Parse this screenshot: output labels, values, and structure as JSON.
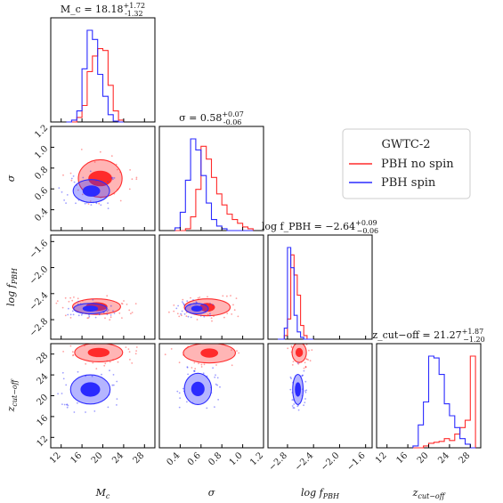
{
  "chart_data": {
    "type": "corner",
    "colors": {
      "no_spin": "#ff2b2b",
      "spin": "#2b2bff"
    },
    "legend": {
      "title": "GWTC-2",
      "entries": [
        "PBH no spin",
        "PBH spin"
      ],
      "placement": "right"
    },
    "parameters": [
      {
        "key": "Mc",
        "label": "M_c",
        "range": [
          10,
          30
        ],
        "ticks": [
          12,
          16,
          20,
          24,
          28
        ],
        "tick_labels": [
          "12",
          "16",
          "20",
          "24",
          "28"
        ],
        "title": "M_c = 18.18^{+1.72}_{-1.32}"
      },
      {
        "key": "sigma",
        "label": "σ",
        "range": [
          0.2,
          1.2
        ],
        "ticks": [
          0.4,
          0.6,
          0.8,
          1.0,
          1.2
        ],
        "tick_labels": [
          "0.4",
          "0.6",
          "0.8",
          "1.0",
          "1.2"
        ],
        "title": "σ = 0.58^{+0.07}_{-0.06}"
      },
      {
        "key": "logf",
        "label": "log f_PBH",
        "range": [
          -3.1,
          -1.5
        ],
        "ticks": [
          -2.8,
          -2.4,
          -2.0,
          -1.6
        ],
        "tick_labels": [
          "−2.8",
          "−2.4",
          "−2.0",
          "−1.6"
        ],
        "title": "log f_PBH = −2.64^{+0.09}_{−0.06}"
      },
      {
        "key": "zcut",
        "label": "z_cut−off",
        "range": [
          10,
          30
        ],
        "ticks": [
          12,
          16,
          20,
          24,
          28
        ],
        "tick_labels": [
          "12",
          "16",
          "20",
          "24",
          "28"
        ],
        "title": "z_cut−off = 21.27^{+1.87}_{−1.20}"
      }
    ],
    "histograms": {
      "Mc": {
        "bins": [
          13.0,
          14.0,
          15.0,
          16.0,
          17.0,
          18.0,
          19.0,
          20.0,
          21.0,
          22.0,
          23.0,
          24.0
        ],
        "no_spin": [
          0,
          0,
          5,
          18,
          55,
          72,
          80,
          78,
          40,
          12,
          2
        ],
        "spin": [
          0,
          2,
          12,
          58,
          100,
          90,
          52,
          28,
          8,
          1,
          0
        ]
      },
      "sigma": {
        "bins": [
          0.35,
          0.4,
          0.45,
          0.5,
          0.55,
          0.6,
          0.65,
          0.7,
          0.75,
          0.8,
          0.85,
          0.9,
          0.95,
          1.0,
          1.05,
          1.1
        ],
        "no_spin": [
          0,
          0,
          2,
          15,
          45,
          92,
          78,
          58,
          40,
          28,
          18,
          12,
          8,
          4,
          2
        ],
        "spin": [
          3,
          20,
          55,
          100,
          88,
          60,
          30,
          12,
          5,
          2,
          0,
          0,
          0,
          0,
          0
        ]
      },
      "logf": {
        "bins": [
          -2.95,
          -2.9,
          -2.85,
          -2.8,
          -2.75,
          -2.7,
          -2.65,
          -2.6,
          -2.55,
          -2.5,
          -2.45,
          -2.4
        ],
        "no_spin": [
          0,
          0,
          4,
          22,
          92,
          70,
          48,
          15,
          4,
          0,
          0
        ],
        "spin": [
          0,
          0,
          12,
          100,
          78,
          26,
          8,
          2,
          0,
          0,
          0
        ]
      },
      "zcut": {
        "bins": [
          17.0,
          18.0,
          19.0,
          20.0,
          21.0,
          22.0,
          23.0,
          24.0,
          25.0,
          26.0,
          27.0,
          28.0,
          29.0
        ],
        "no_spin": [
          0,
          0,
          2,
          5,
          6,
          7,
          10,
          8,
          15,
          22,
          30,
          100
        ],
        "spin": [
          2,
          25,
          50,
          100,
          98,
          80,
          48,
          35,
          22,
          10,
          4,
          0
        ]
      }
    },
    "contours_2d": [
      {
        "x": "Mc",
        "y": "sigma",
        "no_spin": {
          "center": [
            19.5,
            0.7
          ],
          "inner": [
            2.2,
            0.07
          ],
          "outer": [
            4.2,
            0.18
          ]
        },
        "spin": {
          "center": [
            17.8,
            0.58
          ],
          "inner": [
            1.6,
            0.05
          ],
          "outer": [
            3.5,
            0.11
          ]
        }
      },
      {
        "x": "Mc",
        "y": "logf",
        "no_spin": {
          "center": [
            18.8,
            -2.6
          ],
          "inner": [
            2.0,
            0.06
          ],
          "outer": [
            4.6,
            0.12
          ]
        },
        "spin": {
          "center": [
            17.6,
            -2.63
          ],
          "inner": [
            1.4,
            0.04
          ],
          "outer": [
            3.2,
            0.08
          ]
        }
      },
      {
        "x": "Mc",
        "y": "zcut",
        "no_spin": {
          "center": [
            19.2,
            28.3
          ],
          "inner": [
            2.0,
            0.8
          ],
          "outer": [
            4.6,
            1.8
          ]
        },
        "spin": {
          "center": [
            17.6,
            21.2
          ],
          "inner": [
            1.8,
            1.3
          ],
          "outer": [
            3.8,
            2.8
          ]
        }
      },
      {
        "x": "sigma",
        "y": "logf",
        "no_spin": {
          "center": [
            0.66,
            -2.61
          ],
          "inner": [
            0.07,
            0.06
          ],
          "outer": [
            0.22,
            0.13
          ]
        },
        "spin": {
          "center": [
            0.56,
            -2.63
          ],
          "inner": [
            0.05,
            0.04
          ],
          "outer": [
            0.11,
            0.08
          ]
        }
      },
      {
        "x": "sigma",
        "y": "zcut",
        "no_spin": {
          "center": [
            0.68,
            28.2
          ],
          "inner": [
            0.08,
            0.8
          ],
          "outer": [
            0.25,
            1.9
          ]
        },
        "spin": {
          "center": [
            0.57,
            21.3
          ],
          "inner": [
            0.06,
            1.3
          ],
          "outer": [
            0.13,
            3.0
          ]
        }
      },
      {
        "x": "logf",
        "y": "zcut",
        "no_spin": {
          "center": [
            -2.62,
            28.3
          ],
          "inner": [
            0.05,
            0.8
          ],
          "outer": [
            0.11,
            1.9
          ]
        },
        "spin": {
          "center": [
            -2.64,
            21.2
          ],
          "inner": [
            0.04,
            1.3
          ],
          "outer": [
            0.08,
            2.9
          ]
        }
      }
    ]
  }
}
